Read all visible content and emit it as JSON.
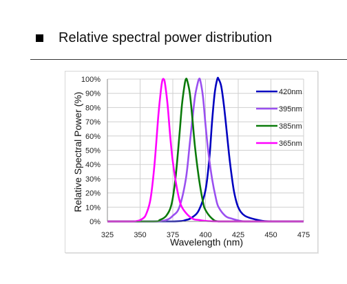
{
  "page": {
    "heading": "Relative spectral power distribution"
  },
  "chart_data": {
    "type": "line",
    "xlabel": "Wavelength (nm)",
    "ylabel": "Relative Spectral Power (%)",
    "xlim": [
      325,
      475
    ],
    "ylim": [
      0,
      100
    ],
    "x_ticks": [
      "325",
      "350",
      "375",
      "400",
      "425",
      "450",
      "475"
    ],
    "y_ticks": [
      "0%",
      "10%",
      "20%",
      "30%",
      "40%",
      "50%",
      "60%",
      "70%",
      "80%",
      "90%",
      "100%"
    ],
    "grid": true,
    "legend_position": "top-right",
    "series": [
      {
        "name": "420nm",
        "color": "#0000c0",
        "x": [
          325,
          375,
          385,
          390,
          395,
          400,
          403,
          405,
          407,
          409,
          410,
          412,
          414,
          416,
          418,
          420,
          422,
          425,
          430,
          440,
          450,
          475
        ],
        "y": [
          0,
          0,
          1,
          3,
          8,
          22,
          45,
          70,
          90,
          100,
          100,
          95,
          82,
          65,
          47,
          32,
          20,
          10,
          4,
          1,
          0,
          0
        ]
      },
      {
        "name": "395nm",
        "color": "#9a4ff0",
        "x": [
          325,
          360,
          370,
          375,
          380,
          385,
          388,
          390,
          392,
          394,
          395,
          396,
          398,
          400,
          402,
          405,
          408,
          410,
          415,
          420,
          430,
          450,
          475
        ],
        "y": [
          0,
          0,
          1,
          4,
          10,
          30,
          55,
          72,
          88,
          97,
          100,
          99,
          88,
          68,
          50,
          30,
          16,
          10,
          4,
          2,
          0,
          0,
          0
        ]
      },
      {
        "name": "385nm",
        "color": "#0a7a0a",
        "x": [
          325,
          360,
          365,
          370,
          374,
          377,
          380,
          382,
          384,
          385,
          386,
          388,
          390,
          392,
          395,
          398,
          400,
          405,
          410,
          425,
          475
        ],
        "y": [
          0,
          0,
          1,
          4,
          12,
          30,
          60,
          82,
          96,
          100,
          99,
          90,
          72,
          52,
          30,
          14,
          8,
          2,
          0,
          0,
          0
        ]
      },
      {
        "name": "365nm",
        "color": "#ff00ff",
        "x": [
          325,
          345,
          352,
          355,
          358,
          361,
          364,
          366,
          367,
          368,
          369,
          371,
          373,
          375,
          378,
          381,
          385,
          390,
          395,
          410,
          475
        ],
        "y": [
          0,
          0,
          2,
          6,
          16,
          40,
          75,
          93,
          99,
          100,
          97,
          82,
          60,
          42,
          24,
          12,
          6,
          2,
          1,
          0,
          0
        ]
      }
    ]
  }
}
